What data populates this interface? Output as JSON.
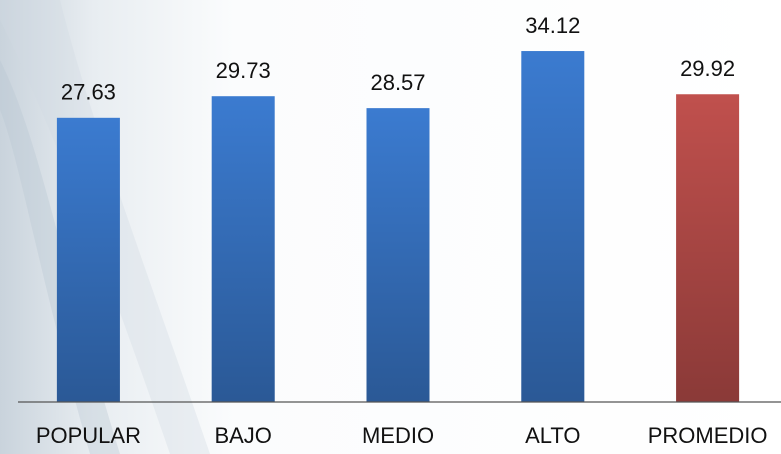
{
  "chart_data": {
    "type": "bar",
    "categories": [
      "POPULAR",
      "BAJO",
      "MEDIO",
      "ALTO",
      "PROMEDIO"
    ],
    "values": [
      27.63,
      29.73,
      28.57,
      34.12,
      29.92
    ],
    "colors": [
      "#3b7bd0",
      "#3b7bd0",
      "#3b7bd0",
      "#3b7bd0",
      "#c0504d"
    ],
    "ylim": [
      0,
      35
    ]
  }
}
